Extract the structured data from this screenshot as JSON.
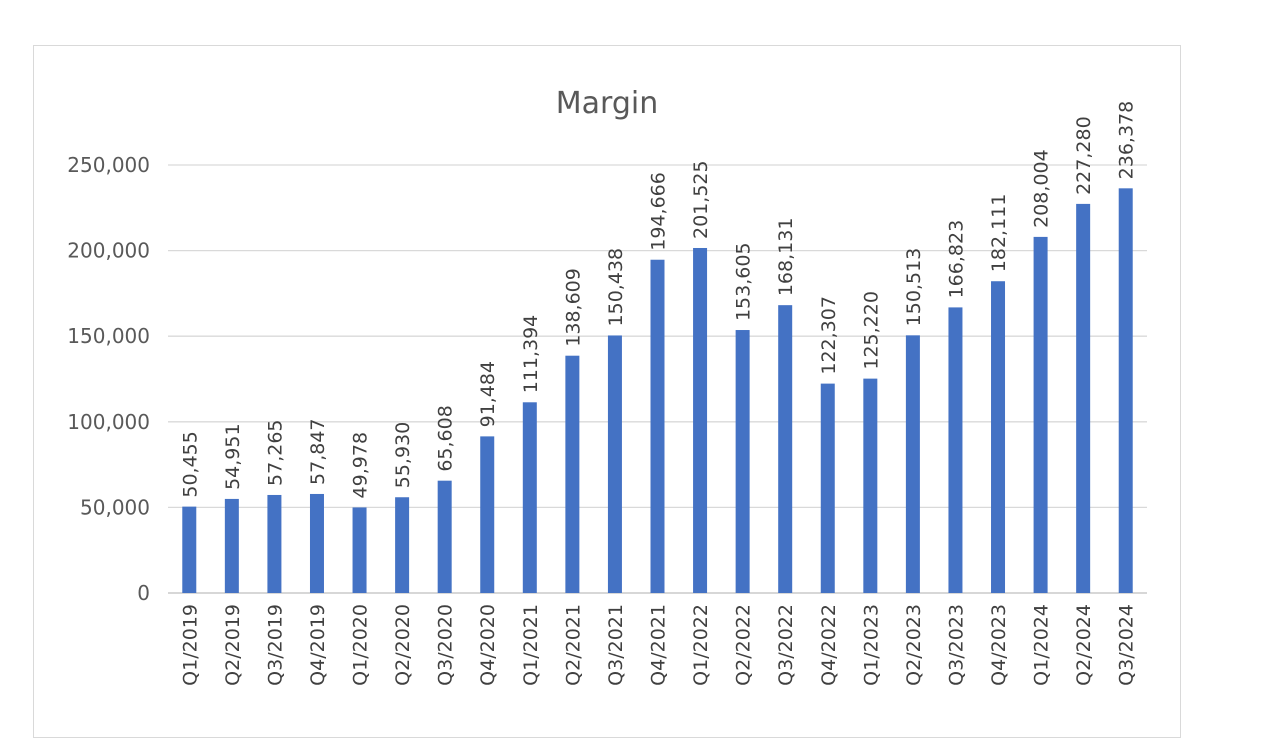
{
  "chart_data": {
    "type": "bar",
    "title": "Margin",
    "xlabel": "",
    "ylabel": "",
    "ylim": [
      0,
      250000
    ],
    "yticks": [
      0,
      50000,
      100000,
      150000,
      200000,
      250000
    ],
    "ytick_labels": [
      "0",
      "50,000",
      "100,000",
      "150,000",
      "200,000",
      "250,000"
    ],
    "grid": true,
    "legend": "none",
    "bar_color": "#4472c4",
    "categories": [
      "Q1/2019",
      "Q2/2019",
      "Q3/2019",
      "Q4/2019",
      "Q1/2020",
      "Q2/2020",
      "Q3/2020",
      "Q4/2020",
      "Q1/2021",
      "Q2/2021",
      "Q3/2021",
      "Q4/2021",
      "Q1/2022",
      "Q2/2022",
      "Q3/2022",
      "Q4/2022",
      "Q1/2023",
      "Q2/2023",
      "Q3/2023",
      "Q4/2023",
      "Q1/2024",
      "Q2/2024",
      "Q3/2024"
    ],
    "values": [
      50455,
      54951,
      57265,
      57847,
      49978,
      55930,
      65608,
      91484,
      111394,
      138609,
      150438,
      194666,
      201525,
      153605,
      168131,
      122307,
      125220,
      150513,
      166823,
      182111,
      208004,
      227280,
      236378
    ],
    "data_labels": [
      "50,455",
      "54,951",
      "57,265",
      "57,847",
      "49,978",
      "55,930",
      "65,608",
      "91,484",
      "111,394",
      "138,609",
      "150,438",
      "194,666",
      "201,525",
      "153,605",
      "168,131",
      "122,307",
      "125,220",
      "150,513",
      "166,823",
      "182,111",
      "208,004",
      "227,280",
      "236,378"
    ]
  }
}
